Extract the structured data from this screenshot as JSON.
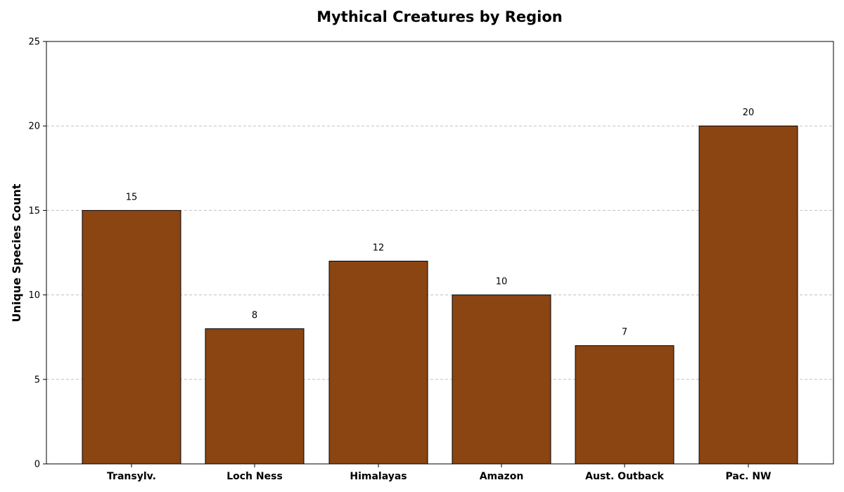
{
  "chart_data": {
    "type": "bar",
    "title": "Mythical Creatures by Region",
    "xlabel": "",
    "ylabel": "Unique Species Count",
    "categories": [
      "Transylv.",
      "Loch Ness",
      "Himalayas",
      "Amazon",
      "Aust. Outback",
      "Pac. NW"
    ],
    "values": [
      15,
      8,
      12,
      10,
      7,
      20
    ],
    "data_labels": [
      "15",
      "8",
      "12",
      "10",
      "7",
      "20"
    ],
    "ylim": [
      0,
      25
    ],
    "yticks": [
      0,
      5,
      10,
      15,
      20,
      25
    ],
    "ytick_labels": [
      "0",
      "5",
      "10",
      "15",
      "20",
      "25"
    ],
    "grid": true,
    "bar_color": "#8B4513",
    "bar_edge_color": "#000000",
    "grid_color": "#c0c0c0"
  }
}
